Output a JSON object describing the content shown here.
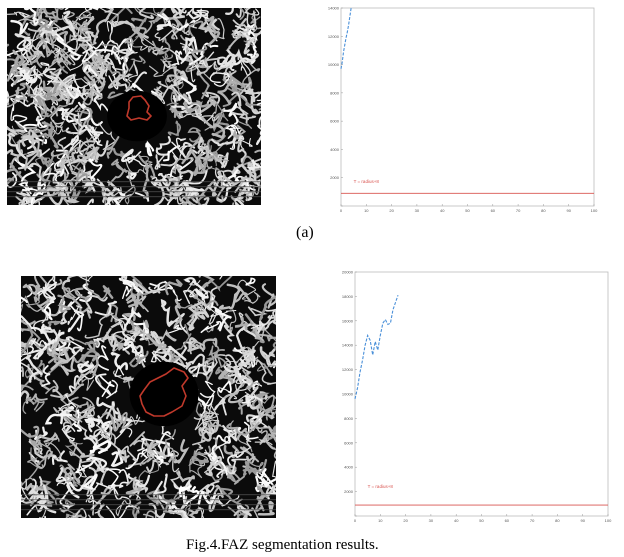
{
  "panels": [
    {
      "image_name": "oct-angiography-image-a",
      "chart_data": {
        "type": "line",
        "xlim": [
          0,
          100
        ],
        "ylim": [
          0,
          14000
        ],
        "x_ticks": [
          "0",
          "10",
          "20",
          "30",
          "40",
          "50",
          "60",
          "70",
          "80",
          "90",
          "100"
        ],
        "y_ticks": [
          "",
          "2000",
          "4000",
          "6000",
          "8000",
          "10000",
          "12000",
          "14000"
        ],
        "series": [
          {
            "style": "dashed",
            "color": "#4a90d9",
            "x": [
              0,
              0.5,
              1,
              1.5,
              2,
              2.5,
              3,
              3.5,
              4
            ],
            "y": [
              9700,
              10200,
              10900,
              11400,
              11900,
              12300,
              12800,
              13400,
              14000
            ]
          },
          {
            "style": "solid",
            "color": "#d9534f",
            "x": [
              0,
              100
            ],
            "y": [
              900,
              900
            ]
          }
        ],
        "legend_text": "T = radius+8",
        "legend_color": "#d9534f"
      },
      "label": "(a)"
    },
    {
      "image_name": "oct-angiography-image-b",
      "chart_data": {
        "type": "line",
        "xlim": [
          0,
          100
        ],
        "ylim": [
          0,
          20000
        ],
        "x_ticks": [
          "0",
          "10",
          "20",
          "30",
          "40",
          "50",
          "60",
          "70",
          "80",
          "90",
          "100"
        ],
        "y_ticks": [
          "",
          "2000",
          "4000",
          "6000",
          "8000",
          "10000",
          "12000",
          "14000",
          "16000",
          "18000",
          "20000"
        ],
        "series": [
          {
            "style": "dashed",
            "color": "#4a90d9",
            "x": [
              0,
              1,
              2,
              3,
              4,
              5,
              6,
              7,
              8,
              9,
              10,
              11,
              12,
              13,
              14,
              15,
              16,
              17
            ],
            "y": [
              9600,
              10500,
              11800,
              12800,
              14000,
              14800,
              14400,
              13200,
              14300,
              13600,
              14800,
              15800,
              16100,
              15700,
              15800,
              16900,
              17500,
              18100
            ]
          },
          {
            "style": "solid",
            "color": "#d9534f",
            "x": [
              0,
              100
            ],
            "y": [
              900,
              900
            ]
          }
        ],
        "legend_text": "T = radius+8",
        "legend_color": "#d9534f"
      }
    }
  ],
  "caption": "Fig.4.FAZ segmentation results."
}
